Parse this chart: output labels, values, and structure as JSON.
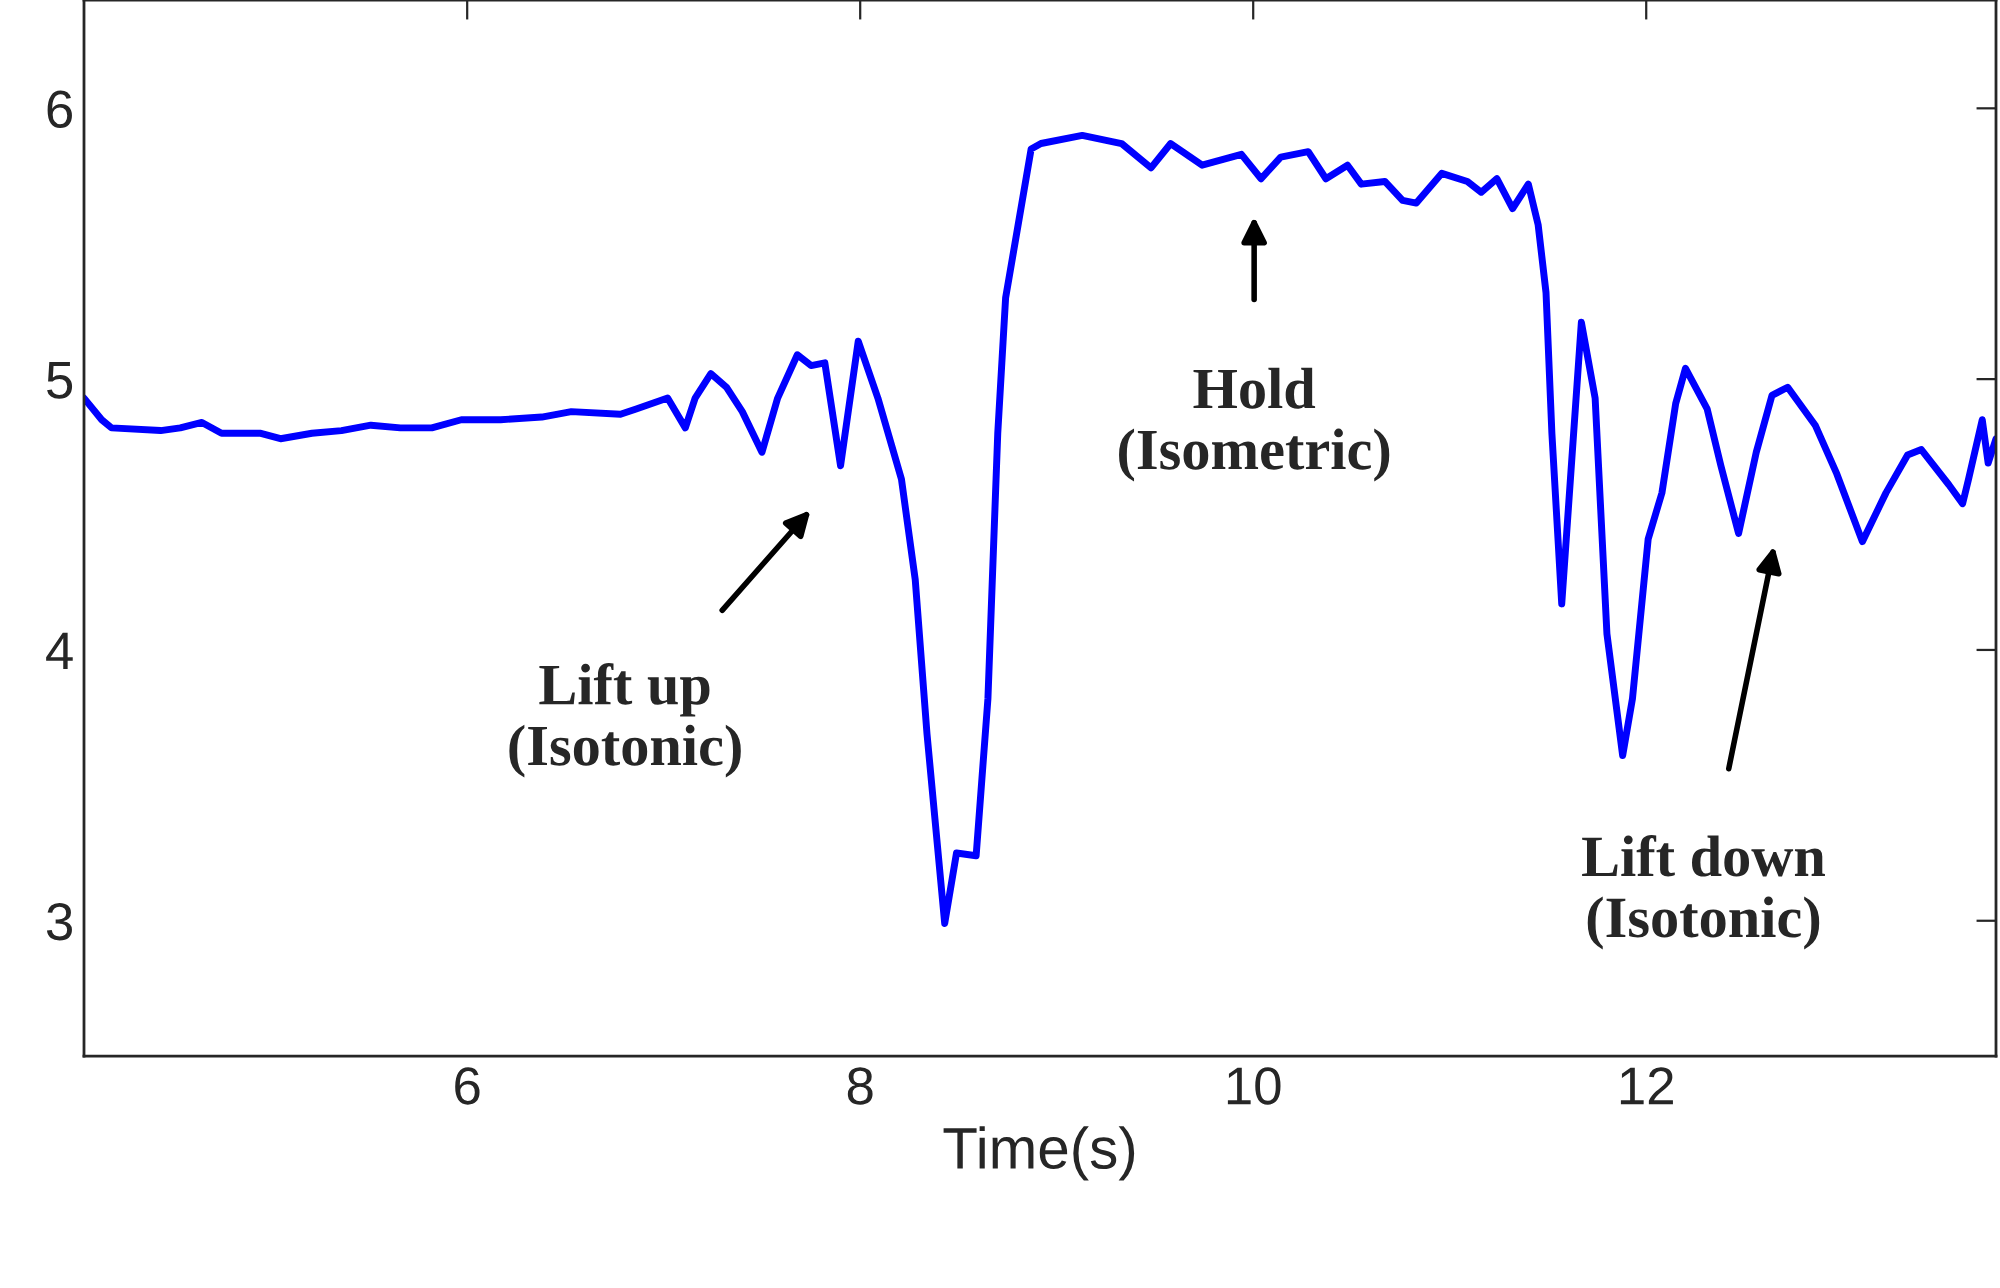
{
  "chart_data": {
    "type": "line",
    "xlabel": "Time(s)",
    "xlim": [
      4.05,
      13.78
    ],
    "ylim": [
      2.5,
      6.4
    ],
    "xticks": [
      6,
      8,
      10,
      12
    ],
    "yticks": [
      3,
      4,
      5,
      6
    ],
    "grid": false,
    "marker": "none",
    "line_style": "solid",
    "series": [
      {
        "color": "#0000ff",
        "x": [
          4.05,
          4.14,
          4.19,
          4.44,
          4.54,
          4.65,
          4.75,
          4.85,
          4.95,
          5.05,
          5.21,
          5.36,
          5.51,
          5.66,
          5.82,
          5.97,
          6.17,
          6.38,
          6.53,
          6.78,
          6.86,
          7.02,
          7.11,
          7.16,
          7.24,
          7.32,
          7.4,
          7.5,
          7.58,
          7.68,
          7.75,
          7.82,
          7.9,
          7.99,
          8.09,
          8.21,
          8.28,
          8.34,
          8.43,
          8.49,
          8.59,
          8.65,
          8.7,
          8.74,
          8.87,
          8.92,
          9.13,
          9.33,
          9.48,
          9.58,
          9.74,
          9.94,
          10.04,
          10.14,
          10.28,
          10.37,
          10.48,
          10.55,
          10.67,
          10.76,
          10.83,
          10.96,
          11.09,
          11.16,
          11.24,
          11.32,
          11.4,
          11.45,
          11.49,
          11.52,
          11.57,
          11.67,
          11.74,
          11.8,
          11.88,
          11.93,
          12.01,
          12.08,
          12.15,
          12.2,
          12.31,
          12.38,
          12.47,
          12.56,
          12.64,
          12.72,
          12.86,
          12.97,
          13.1,
          13.22,
          13.33,
          13.4,
          13.54,
          13.61,
          13.64,
          13.71,
          13.74,
          13.78
        ],
        "values": [
          4.93,
          4.85,
          4.82,
          4.81,
          4.82,
          4.84,
          4.8,
          4.8,
          4.8,
          4.78,
          4.8,
          4.81,
          4.83,
          4.82,
          4.82,
          4.85,
          4.85,
          4.86,
          4.88,
          4.87,
          4.89,
          4.93,
          4.82,
          4.93,
          5.02,
          4.97,
          4.88,
          4.73,
          4.93,
          5.09,
          5.05,
          5.06,
          4.68,
          5.14,
          4.93,
          4.63,
          4.26,
          3.69,
          2.99,
          3.25,
          3.24,
          3.82,
          4.8,
          5.3,
          5.85,
          5.87,
          5.9,
          5.87,
          5.78,
          5.87,
          5.79,
          5.83,
          5.74,
          5.82,
          5.84,
          5.74,
          5.79,
          5.72,
          5.73,
          5.66,
          5.65,
          5.76,
          5.73,
          5.69,
          5.74,
          5.63,
          5.72,
          5.57,
          5.32,
          4.8,
          4.17,
          5.21,
          4.93,
          4.06,
          3.61,
          3.82,
          4.41,
          4.58,
          4.91,
          5.04,
          4.89,
          4.68,
          4.43,
          4.73,
          4.94,
          4.97,
          4.83,
          4.65,
          4.4,
          4.58,
          4.72,
          4.74,
          4.61,
          4.54,
          4.63,
          4.85,
          4.69,
          4.78
        ]
      }
    ],
    "annotations": [
      "Lift up\n(Isotonic)",
      "Hold\n(Isometric)",
      "Lift down\n(Isotonic)"
    ]
  }
}
